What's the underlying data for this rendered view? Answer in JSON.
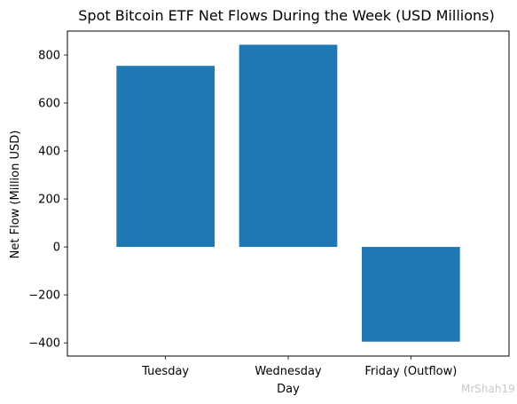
{
  "chart_data": {
    "type": "bar",
    "title": "Spot Bitcoin ETF Net Flows During the Week (USD Millions)",
    "xlabel": "Day",
    "ylabel": "Net Flow (Million USD)",
    "categories": [
      "Tuesday",
      "Wednesday",
      "Friday (Outflow)"
    ],
    "values": [
      755,
      843,
      -395
    ],
    "ylim": [
      -455,
      900
    ],
    "yticks": [
      -400,
      -200,
      0,
      200,
      400,
      600,
      800
    ],
    "ytick_labels": [
      "−400",
      "−200",
      "0",
      "200",
      "400",
      "600",
      "800"
    ],
    "bar_color": "#1f77b4",
    "grid": false
  },
  "watermark": "MrShah19"
}
